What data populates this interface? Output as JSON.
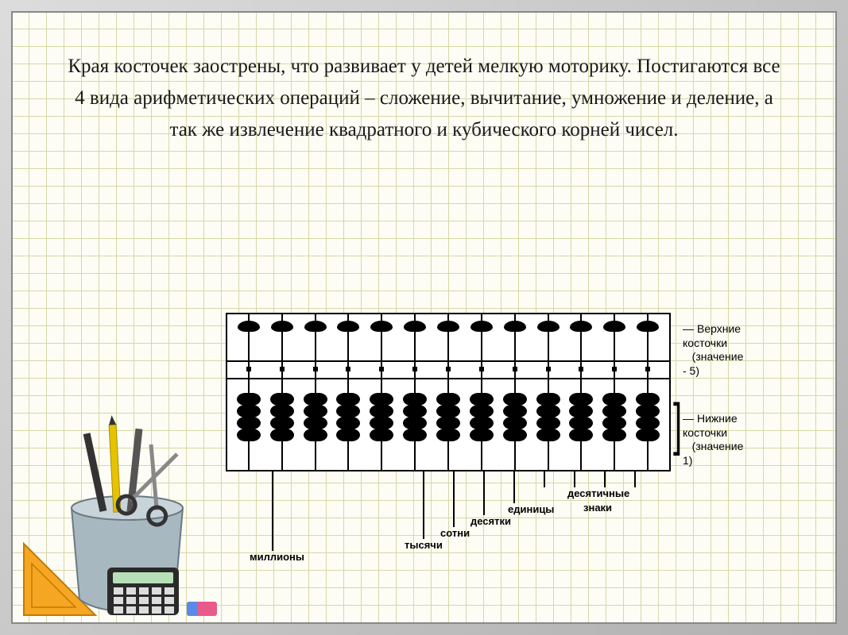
{
  "main_text": "Края косточек заострены, что развивает у детей мелкую моторику. Постигаются все 4 вида арифметических операций – сложение, вычитание, умножение и деление, а так же извлечение квадратного и кубического корней чисел.",
  "abacus": {
    "rods": 13,
    "top_beads_per_rod": 1,
    "bottom_beads_per_rod": 4,
    "frame_color": "#000000",
    "bead_color": "#000000",
    "background": "#ffffff"
  },
  "labels": {
    "upper_beads": "Верхние косточки",
    "upper_value": "(значение - 5)",
    "lower_beads": "Нижние косточки",
    "lower_value": "(значение 1)",
    "decimal": "десятичные",
    "decimal2": "знаки",
    "units": "единицы",
    "tens": "десятки",
    "hundreds": "сотни",
    "thousands": "тысячи",
    "millions": "миллионы"
  },
  "colors": {
    "grid_line": "#d7d7a8",
    "paper": "#fdfdf5",
    "frame": "#b8b8b8",
    "text": "#1a1a1a"
  },
  "typography": {
    "main_fontsize": 25,
    "label_fontsize": 14,
    "small_label_fontsize": 13
  }
}
